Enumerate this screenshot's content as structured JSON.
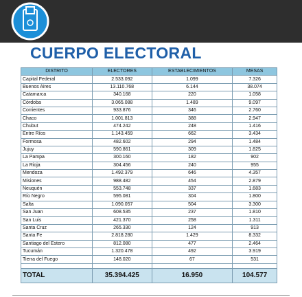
{
  "header": {
    "title": "CUERPO ELECTORAL"
  },
  "table": {
    "columns": [
      "DISTRITO",
      "ELECTORES",
      "ESTABLECIMIENTOS",
      "MESAS"
    ],
    "rows": [
      [
        "Capital Federal",
        "2.533.092",
        "1.099",
        "7.326"
      ],
      [
        "Buenos Aires",
        "13.110.768",
        "6.144",
        "38.074"
      ],
      [
        "Catamarca",
        "340.168",
        "220",
        "1.058"
      ],
      [
        "Córdoba",
        "3.065.088",
        "1.489",
        "9.097"
      ],
      [
        "Corrientes",
        "933.876",
        "346",
        "2.760"
      ],
      [
        "Chaco",
        "1.001.813",
        "388",
        "2.947"
      ],
      [
        "Chubut",
        "474.242",
        "248",
        "1.416"
      ],
      [
        "Entre Ríos",
        "1.143.459",
        "662",
        "3.434"
      ],
      [
        "Formosa",
        "482.602",
        "294",
        "1.484"
      ],
      [
        "Jujuy",
        "590.861",
        "309",
        "1.825"
      ],
      [
        "La Pampa",
        "300.160",
        "182",
        "902"
      ],
      [
        "La Rioja",
        "304.456",
        "240",
        "955"
      ],
      [
        "Mendoza",
        "1.492.379",
        "646",
        "4.357"
      ],
      [
        "Misiones",
        "988.482",
        "454",
        "2.879"
      ],
      [
        "Neuquén",
        "553.748",
        "337",
        "1.683"
      ],
      [
        "Río Negro",
        "595.081",
        "304",
        "1.800"
      ],
      [
        "Salta",
        "1.090.057",
        "504",
        "3.300"
      ],
      [
        "San Juan",
        "608.535",
        "237",
        "1.810"
      ],
      [
        "San Luis",
        "421.370",
        "258",
        "1.311"
      ],
      [
        "Santa Cruz",
        "265.330",
        "124",
        "913"
      ],
      [
        "Santa Fe",
        "2.818.280",
        "1.429",
        "8.332"
      ],
      [
        "Santiago del Estero",
        "812.080",
        "477",
        "2.464"
      ],
      [
        "Tucumán",
        "1.320.478",
        "492",
        "3.919"
      ],
      [
        "Tierra del Fuego",
        "148.020",
        "67",
        "531"
      ]
    ],
    "total": [
      "TOTAL",
      "35.394.425",
      "16.950",
      "104.577"
    ]
  }
}
